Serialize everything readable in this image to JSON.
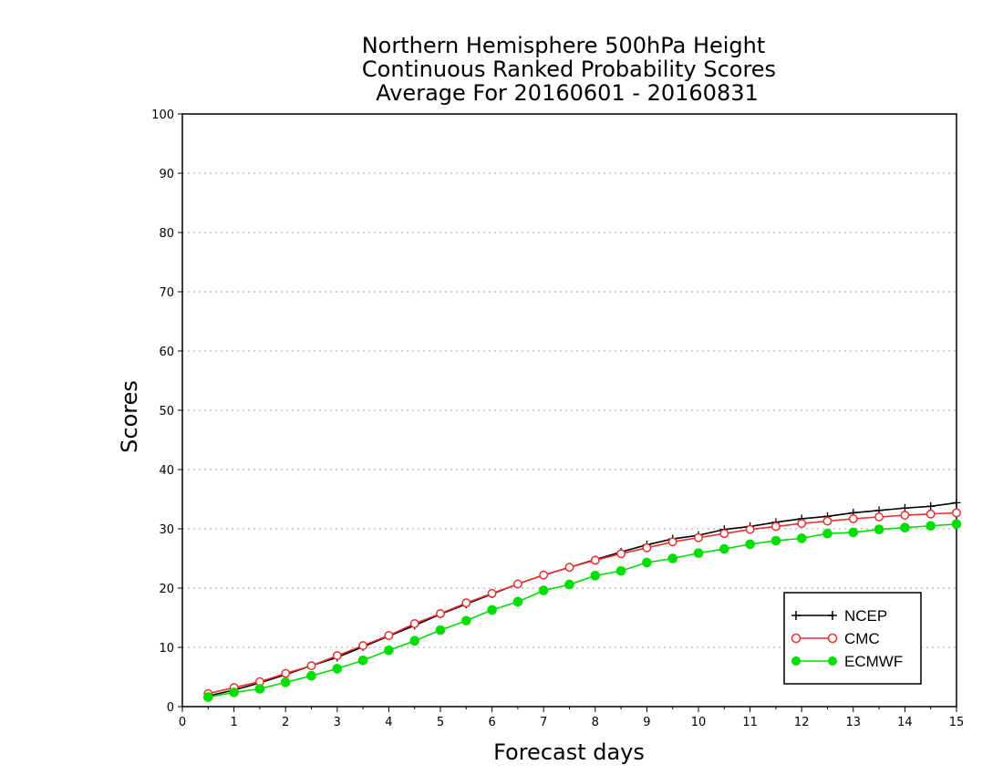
{
  "chart_data": {
    "type": "line",
    "title": [
      "Northern Hemisphere 500hPa Height",
      "Continuous Ranked Probability Scores",
      "Average For 20160601 - 20160831"
    ],
    "xlabel": "Forecast days",
    "ylabel": "Scores",
    "xlim": [
      0,
      15
    ],
    "ylim": [
      0,
      100
    ],
    "xticks": [
      0,
      1,
      2,
      3,
      4,
      5,
      6,
      7,
      8,
      9,
      10,
      11,
      12,
      13,
      14,
      15
    ],
    "yticks": [
      0,
      10,
      20,
      30,
      40,
      50,
      60,
      70,
      80,
      90,
      100
    ],
    "grid": "horizontal dotted",
    "legend_position": "bottom-right",
    "x": [
      0.5,
      1,
      1.5,
      2,
      2.5,
      3,
      3.5,
      4,
      4.5,
      5,
      5.5,
      6,
      6.5,
      7,
      7.5,
      8,
      8.5,
      9,
      9.5,
      10,
      10.5,
      11,
      11.5,
      12,
      12.5,
      13,
      13.5,
      14,
      14.5,
      15
    ],
    "series": [
      {
        "name": "NCEP",
        "color": "#000000",
        "marker": "plus",
        "values": [
          1.8,
          2.8,
          4.0,
          5.4,
          6.9,
          8.3,
          10.1,
          11.9,
          13.7,
          15.6,
          17.3,
          19.0,
          20.7,
          22.2,
          23.5,
          24.8,
          26.1,
          27.3,
          28.3,
          28.9,
          29.9,
          30.4,
          31.1,
          31.7,
          32.1,
          32.7,
          33.1,
          33.5,
          33.8,
          34.4
        ]
      },
      {
        "name": "CMC",
        "color": "#e83030",
        "marker": "open-circle",
        "values": [
          2.2,
          3.2,
          4.2,
          5.6,
          6.9,
          8.6,
          10.3,
          12.0,
          14.0,
          15.7,
          17.5,
          19.1,
          20.7,
          22.2,
          23.5,
          24.7,
          25.8,
          26.8,
          27.8,
          28.5,
          29.2,
          29.9,
          30.4,
          30.9,
          31.3,
          31.7,
          32.0,
          32.3,
          32.5,
          32.7
        ]
      },
      {
        "name": "ECMWF",
        "color": "#00dd00",
        "marker": "filled-circle",
        "values": [
          1.6,
          2.4,
          3.0,
          4.1,
          5.2,
          6.4,
          7.8,
          9.5,
          11.1,
          12.9,
          14.5,
          16.3,
          17.7,
          19.6,
          20.6,
          22.1,
          22.9,
          24.3,
          25.0,
          25.9,
          26.6,
          27.4,
          28.0,
          28.4,
          29.2,
          29.4,
          29.9,
          30.2,
          30.5,
          30.8
        ]
      }
    ]
  }
}
